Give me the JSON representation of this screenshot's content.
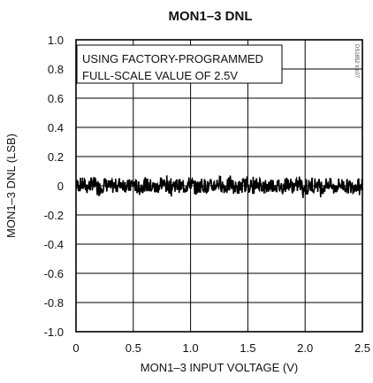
{
  "chart_data": {
    "type": "line",
    "title": "MON1–3 DNL",
    "xlabel": "MON1–3 INPUT VOLTAGE (V)",
    "ylabel": "MON1–3 DNL (LSB)",
    "xlim": [
      0,
      2.5
    ],
    "ylim": [
      -1.0,
      1.0
    ],
    "x_ticks": [
      0,
      0.5,
      1.0,
      1.5,
      2.0,
      2.5
    ],
    "x_tick_labels": [
      "0",
      "0.5",
      "1.0",
      "1.5",
      "2.0",
      "2.5"
    ],
    "y_ticks": [
      1.0,
      0.8,
      0.6,
      0.4,
      0.2,
      0,
      -0.2,
      -0.4,
      -0.6,
      -0.8,
      -1.0
    ],
    "y_tick_labels": [
      "1.0",
      "0.8",
      "0.6",
      "0.4",
      "0.2",
      "0",
      "-0.2",
      "-0.4",
      "-0.6",
      "-0.8",
      "-1.0"
    ],
    "grid": true,
    "annotation_lines": [
      "USING FACTORY-PROGRAMMED",
      "FULL-SCALE VALUE OF 2.5V"
    ],
    "figure_code": "DS1852 toc07",
    "series": [
      {
        "color": "#000000",
        "x": [
          0.0,
          0.05,
          0.1,
          0.15,
          0.2,
          0.25,
          0.3,
          0.35,
          0.4,
          0.45,
          0.5,
          0.55,
          0.6,
          0.65,
          0.7,
          0.75,
          0.8,
          0.85,
          0.9,
          0.95,
          1.0,
          1.05,
          1.1,
          1.15,
          1.2,
          1.25,
          1.3,
          1.35,
          1.4,
          1.45,
          1.5,
          1.55,
          1.6,
          1.65,
          1.7,
          1.75,
          1.8,
          1.85,
          1.9,
          1.95,
          2.0,
          2.05,
          2.1,
          2.15,
          2.2,
          2.25,
          2.3,
          2.35,
          2.4,
          2.45,
          2.5
        ],
        "y": [
          0.0,
          0.01,
          -0.01,
          0.02,
          -0.02,
          0.01,
          -0.01,
          0.0,
          0.02,
          -0.01,
          0.01,
          -0.02,
          0.01,
          0.0,
          -0.02,
          0.02,
          -0.01,
          0.01,
          0.0,
          -0.01,
          0.02,
          -0.02,
          0.01,
          -0.01,
          0.0,
          0.02,
          -0.01,
          0.01,
          -0.02,
          0.0,
          0.01,
          -0.01,
          0.02,
          -0.02,
          0.01,
          0.0,
          -0.01,
          0.02,
          -0.01,
          0.01,
          -0.02,
          0.0,
          0.01,
          -0.01,
          0.02,
          -0.02,
          0.01,
          0.0,
          -0.01,
          0.01,
          0.0
        ],
        "noise_amplitude": 0.05
      }
    ]
  }
}
